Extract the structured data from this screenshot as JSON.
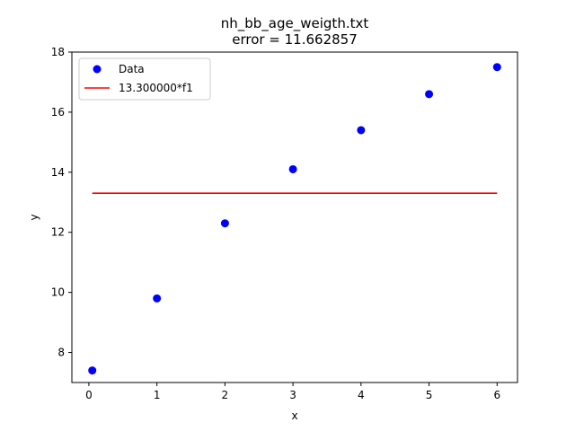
{
  "chart_data": {
    "type": "scatter",
    "title": "nh_bb_age_weigth.txt",
    "subtitle": "error  = 11.662857",
    "xlabel": "x",
    "ylabel": "y",
    "xlim": [
      -0.25,
      6.3
    ],
    "ylim": [
      7.0,
      18.0
    ],
    "xticks": [
      0,
      1,
      2,
      3,
      4,
      5,
      6
    ],
    "yticks": [
      8,
      10,
      12,
      14,
      16,
      18
    ],
    "grid": false,
    "legend_position": "top-left",
    "series": [
      {
        "name": "Data",
        "kind": "scatter",
        "color": "#0000ff",
        "x": [
          0.05,
          1,
          2,
          3,
          4,
          5,
          6
        ],
        "y": [
          7.4,
          9.8,
          12.3,
          14.1,
          15.4,
          16.6,
          17.5
        ]
      },
      {
        "name": "13.300000*f1",
        "kind": "line",
        "color": "#ff0000",
        "x": [
          0.05,
          6
        ],
        "y": [
          13.3,
          13.3
        ]
      }
    ]
  }
}
